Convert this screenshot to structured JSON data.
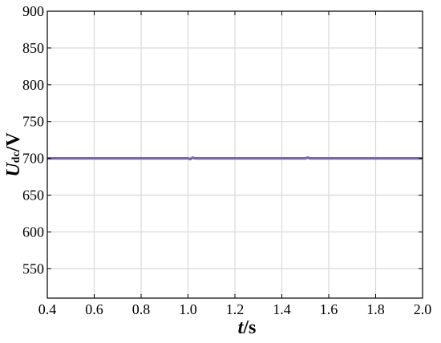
{
  "chart_data": {
    "type": "line",
    "xlim": [
      0.4,
      2.0
    ],
    "ylim": [
      510,
      900
    ],
    "x_ticks": [
      0.4,
      0.6,
      0.8,
      1.0,
      1.2,
      1.4,
      1.6,
      1.8,
      2.0
    ],
    "x_tick_labels": [
      "0.4",
      "0.6",
      "0.8",
      "1.0",
      "1.2",
      "1.4",
      "1.6",
      "1.8",
      "2.0"
    ],
    "y_ticks": [
      550,
      600,
      650,
      700,
      750,
      800,
      850,
      900
    ],
    "y_tick_labels": [
      "550",
      "600",
      "650",
      "700",
      "750",
      "800",
      "850",
      "900"
    ],
    "xlabel": {
      "var": "t",
      "unit": "/s"
    },
    "ylabel": {
      "var": "U",
      "sub": "dc",
      "unit": "/V"
    },
    "grid": true,
    "series": [
      {
        "color": "#7b68a6",
        "x": [
          0.4,
          0.45,
          0.5,
          0.55,
          0.6,
          0.65,
          0.7,
          0.75,
          0.8,
          0.85,
          0.9,
          0.95,
          1.0,
          1.01,
          1.02,
          1.03,
          1.05,
          1.1,
          1.15,
          1.2,
          1.25,
          1.3,
          1.35,
          1.4,
          1.45,
          1.5,
          1.51,
          1.52,
          1.55,
          1.6,
          1.65,
          1.7,
          1.75,
          1.8,
          1.85,
          1.9,
          1.95,
          2.0
        ],
        "y": [
          700,
          700,
          700,
          700,
          700,
          700,
          700,
          700,
          700,
          700,
          700,
          700,
          700,
          699,
          701,
          700,
          700,
          700,
          700,
          700,
          700,
          700,
          700,
          700,
          700,
          700,
          701,
          700,
          700,
          700,
          700,
          700,
          700,
          700,
          700,
          700,
          700,
          700
        ]
      }
    ]
  }
}
